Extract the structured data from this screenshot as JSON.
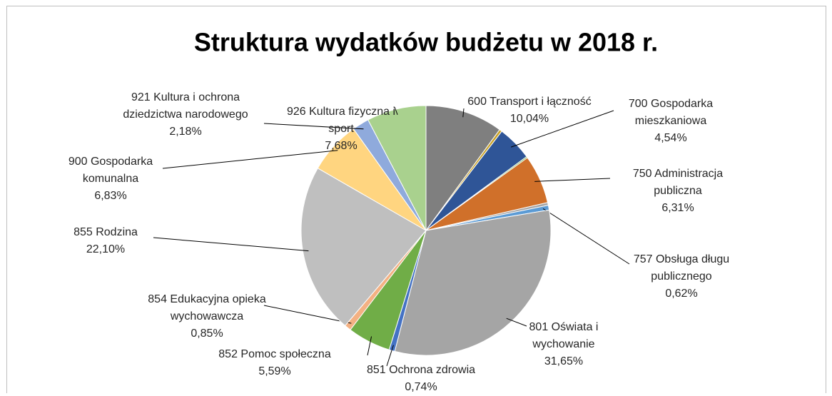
{
  "chart_data": {
    "type": "pie",
    "title": "Struktura wydatków budżetu w 2018 r.",
    "categories": [
      "600 Transport i łączność",
      null,
      "700 Gospodarka mieszkaniowa",
      null,
      "750 Administracja publiczna",
      null,
      "757 Obsługa długu publicznego",
      "801 Oświata i wychowanie",
      "851 Ochrona zdrowia",
      "852 Pomoc społeczna",
      "854 Edukacyjna opieka wychowawcza",
      "855 Rodzina",
      "900 Gospodarka komunalna",
      "921 Kultura i ochrona dziedzictwa narodowego",
      "926 Kultura fizyczna i sport"
    ],
    "values": [
      10.04,
      0.35,
      4.54,
      0.17,
      6.31,
      0.35,
      0.62,
      31.65,
      0.74,
      5.59,
      0.85,
      22.1,
      6.83,
      2.18,
      7.68
    ],
    "value_labels": [
      "10,04%",
      null,
      "4,54%",
      null,
      "6,31%",
      null,
      "0,62%",
      "31,65%",
      "0,74%",
      "5,59%",
      "0,85%",
      "22,10%",
      "6,83%",
      "2,18%",
      "7,68%"
    ],
    "colors": [
      "#7f7f7f",
      "#c9a227",
      "#2f5597",
      "#70ad47",
      "#d0702a",
      "#a5a5a5",
      "#5b9bd5",
      "#a5a5a5",
      "#4472c4",
      "#70ad47",
      "#f4b183",
      "#bfbfbf",
      "#ffd580",
      "#8faadc",
      "#a9d18e"
    ]
  }
}
